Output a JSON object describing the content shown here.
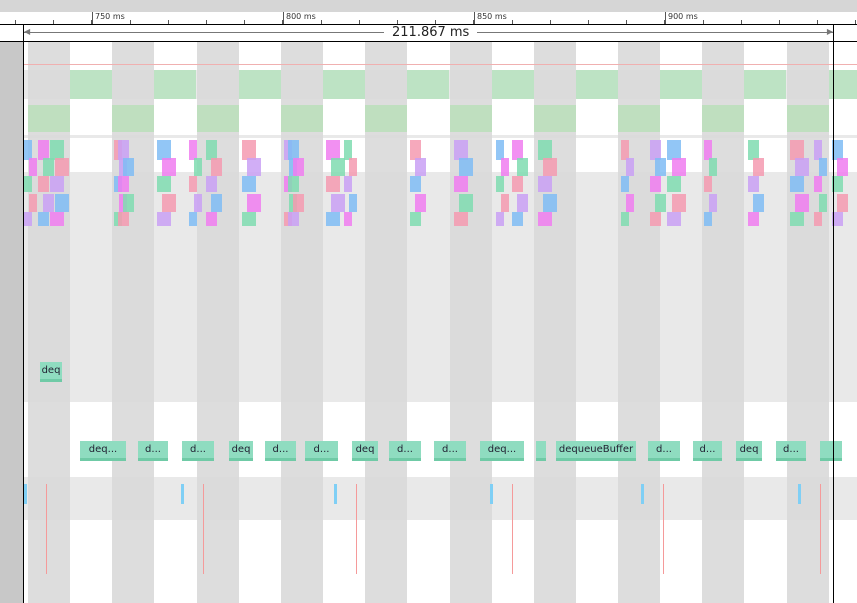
{
  "ruler": {
    "ticks": [
      "750 ms",
      "800 ms",
      "850 ms",
      "900 ms"
    ]
  },
  "selection": {
    "duration": "211.867 ms"
  },
  "tracks": {
    "deq_short": "deq",
    "dequeue_slices": [
      "deq...",
      "d...",
      "d...",
      "deq",
      "d...",
      "d...",
      "deq",
      "d...",
      "d...",
      "deq...",
      "",
      "dequeueBuffer",
      "d...",
      "d...",
      "deq",
      "d...",
      ""
    ]
  },
  "colors": {
    "slice": "#8fdcc0",
    "frame_green": "#bde3c4",
    "band_gray": "#d9d9d9",
    "pink": "#f07cf0",
    "blue": "#7fbcf5"
  }
}
